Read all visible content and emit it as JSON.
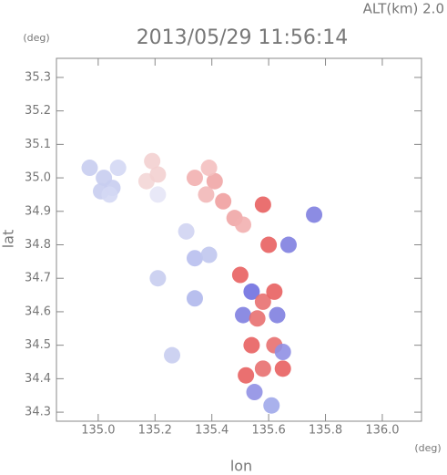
{
  "chart_data": {
    "type": "scatter",
    "title": "2013/05/29 11:56:14",
    "annotation": "ALT(km) 2.0",
    "y_unit": "(deg)",
    "x_unit": "(deg)",
    "x_label": "lon",
    "y_label": "lat",
    "xlim": [
      134.853,
      136.138
    ],
    "ylim": [
      34.273,
      35.357
    ],
    "xticks": [
      {
        "value": 135,
        "label": "135.0"
      },
      135.2,
      135.4,
      135.6,
      135.8,
      {
        "value": 136,
        "label": "136.0"
      }
    ],
    "yticks": [
      34.3,
      34.4,
      34.5,
      34.6,
      34.7,
      34.8,
      34.9,
      {
        "value": 35,
        "label": "35.0"
      },
      35.1,
      35.2,
      35.3
    ],
    "x": [
      134.97,
      135.02,
      135.05,
      135.01,
      135.04,
      135.07,
      135.17,
      135.21,
      135.21,
      135.19,
      135.34,
      135.41,
      135.38,
      135.44,
      135.39,
      135.48,
      135.51,
      135.34,
      135.39,
      135.31,
      135.34,
      135.21,
      135.5,
      135.54,
      135.58,
      135.62,
      135.51,
      135.56,
      135.63,
      135.6,
      135.67,
      135.54,
      135.62,
      135.65,
      135.52,
      135.58,
      135.65,
      135.55,
      135.61,
      135.26,
      135.58,
      135.76
    ],
    "y": [
      35.03,
      35.0,
      34.97,
      34.96,
      34.95,
      35.03,
      34.99,
      35.01,
      34.95,
      35.05,
      35.0,
      34.99,
      34.95,
      34.93,
      35.03,
      34.88,
      34.86,
      34.76,
      34.77,
      34.84,
      34.64,
      34.7,
      34.71,
      34.66,
      34.63,
      34.66,
      34.59,
      34.58,
      34.59,
      34.8,
      34.8,
      34.5,
      34.5,
      34.48,
      34.41,
      34.43,
      34.43,
      34.36,
      34.32,
      34.47,
      34.92,
      34.89
    ],
    "colors": [
      "#c8cdf0",
      "#c8cdf0",
      "#c8cdf0",
      "#c8cdf0",
      "#d4d8f4",
      "#d4d8f4",
      "#f3d6d6",
      "#f3d0d0",
      "#e6e6f6",
      "#f3d0d0",
      "#f2b0b0",
      "#f0a6a6",
      "#f2b8b8",
      "#f0a0a0",
      "#f4c0c0",
      "#f0a6a6",
      "#f2b0b0",
      "#b8bfee",
      "#c0c6ee",
      "#d0d4f2",
      "#b0b8ec",
      "#c8cdf0",
      "#e86060",
      "#7070e0",
      "#e87070",
      "#e86060",
      "#8080e0",
      "#e87070",
      "#8080e0",
      "#e86060",
      "#8080e0",
      "#e86060",
      "#e87070",
      "#9090e4",
      "#e86060",
      "#e87070",
      "#e86060",
      "#9090e4",
      "#a0a8ea",
      "#c8cdf0",
      "#e86060",
      "#8080e0"
    ]
  }
}
